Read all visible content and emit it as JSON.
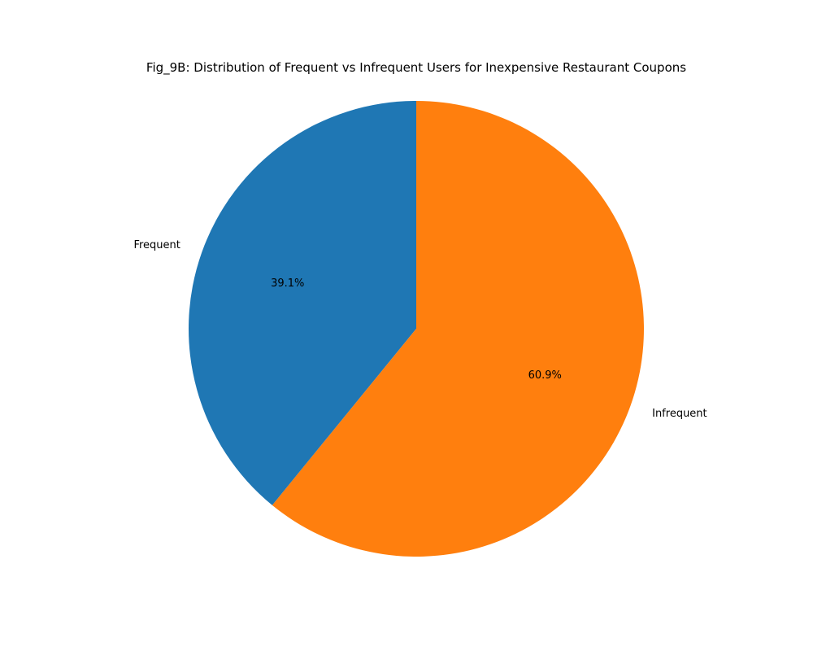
{
  "chart_data": {
    "type": "pie",
    "title": "Fig_9B: Distribution of Frequent vs Infrequent Users for Inexpensive Restaurant Coupons",
    "slices": [
      {
        "label": "Frequent",
        "value": 39.1,
        "pct_label": "39.1%",
        "color": "#1f77b4"
      },
      {
        "label": "Infrequent",
        "value": 60.9,
        "pct_label": "60.9%",
        "color": "#ff7f0e"
      }
    ],
    "start_angle_deg": 90,
    "direction": "counterclockwise",
    "legend": "none"
  }
}
